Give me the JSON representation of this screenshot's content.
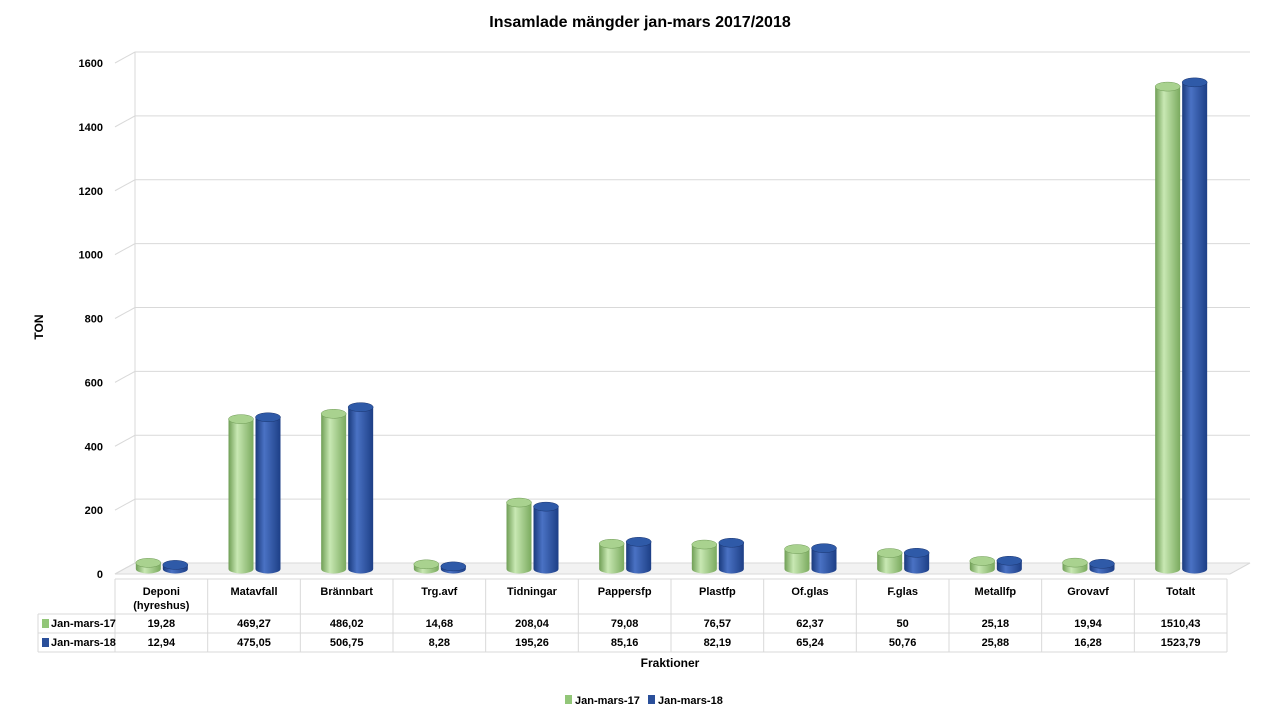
{
  "chart_data": {
    "type": "bar",
    "title": "Insamlade mängder jan-mars 2017/2018",
    "xlabel": "Fraktioner",
    "ylabel": "TON",
    "ylim": [
      0,
      1600
    ],
    "yticks": [
      "0",
      "200",
      "400",
      "600",
      "800",
      "1000",
      "1200",
      "1400",
      "1600"
    ],
    "grid": true,
    "legend_position": "bottom",
    "categories": [
      [
        "Deponi",
        "(hyreshus)"
      ],
      [
        "Matavfall"
      ],
      [
        "Brännbart"
      ],
      [
        "Trg.avf"
      ],
      [
        "Tidningar"
      ],
      [
        "Pappersfp"
      ],
      [
        "Plastfp"
      ],
      [
        "Of.glas"
      ],
      [
        "F.glas"
      ],
      [
        "Metallfp"
      ],
      [
        "Grovavf"
      ],
      [
        "Totalt"
      ]
    ],
    "series": [
      {
        "name": "Jan-mars-17",
        "color": "#92c678",
        "values": [
          19.28,
          469.27,
          486.02,
          14.68,
          208.04,
          79.08,
          76.57,
          62.37,
          50,
          25.18,
          19.94,
          1510.43
        ],
        "labels": [
          "19,28",
          "469,27",
          "486,02",
          "14,68",
          "208,04",
          "79,08",
          "76,57",
          "62,37",
          "50",
          "25,18",
          "19,94",
          "1510,43"
        ]
      },
      {
        "name": "Jan-mars-18",
        "color": "#2a4f9a",
        "values": [
          12.94,
          475.05,
          506.75,
          8.28,
          195.26,
          85.16,
          82.19,
          65.24,
          50.76,
          25.88,
          16.28,
          1523.79
        ],
        "labels": [
          "12,94",
          "475,05",
          "506,75",
          "8,28",
          "195,26",
          "85,16",
          "82,19",
          "65,24",
          "50,76",
          "25,88",
          "16,28",
          "1523,79"
        ]
      }
    ]
  }
}
